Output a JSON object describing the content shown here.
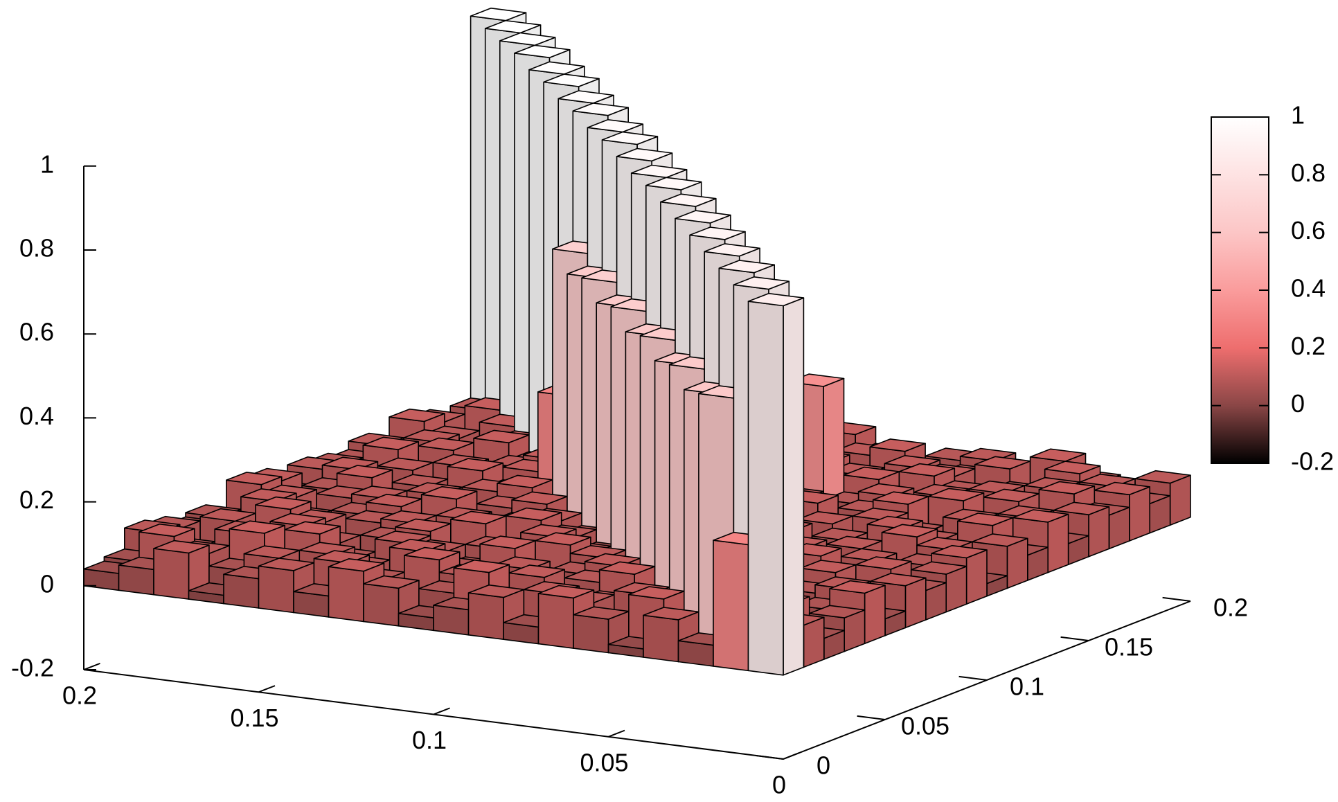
{
  "chart_data": {
    "type": "bar3d",
    "x": [
      0.005,
      0.015,
      0.025,
      0.035,
      0.045,
      0.055,
      0.065,
      0.075,
      0.085,
      0.095,
      0.105,
      0.115,
      0.125,
      0.135,
      0.145,
      0.155,
      0.165,
      0.175,
      0.185,
      0.195
    ],
    "y": [
      0.005,
      0.015,
      0.025,
      0.035,
      0.045,
      0.055,
      0.065,
      0.075,
      0.085,
      0.095,
      0.105,
      0.115,
      0.125,
      0.135,
      0.145,
      0.155,
      0.165,
      0.175,
      0.185,
      0.195
    ],
    "z": [
      [
        0.88,
        0.3,
        0.05,
        0.1,
        0.02,
        0.08,
        0.12,
        0.04,
        0.1,
        0.06,
        0.03,
        0.09,
        0.12,
        0.05,
        0.1,
        0.07,
        0.02,
        0.11,
        0.06,
        0.04
      ],
      [
        0.1,
        0.89,
        0.62,
        0.06,
        0.12,
        0.03,
        0.09,
        0.1,
        0.05,
        0.13,
        0.07,
        0.02,
        0.08,
        0.11,
        0.04,
        0.1,
        0.06,
        0.09,
        0.12,
        0.05
      ],
      [
        0.05,
        0.12,
        0.9,
        0.6,
        0.04,
        0.1,
        0.07,
        0.02,
        0.11,
        0.06,
        0.09,
        0.12,
        0.03,
        0.08,
        0.1,
        0.05,
        0.13,
        0.04,
        0.07,
        0.1
      ],
      [
        0.08,
        0.03,
        0.1,
        0.91,
        0.63,
        0.06,
        0.12,
        0.09,
        0.04,
        0.1,
        0.05,
        0.08,
        0.11,
        0.02,
        0.07,
        0.12,
        0.06,
        0.1,
        0.03,
        0.09
      ],
      [
        0.12,
        0.07,
        0.04,
        0.1,
        0.92,
        0.61,
        0.05,
        0.11,
        0.08,
        0.03,
        0.12,
        0.06,
        0.09,
        0.1,
        0.04,
        0.08,
        0.11,
        0.05,
        0.1,
        0.07
      ],
      [
        0.04,
        0.1,
        0.08,
        0.05,
        0.12,
        0.93,
        0.64,
        0.07,
        0.1,
        0.12,
        0.02,
        0.09,
        0.05,
        0.11,
        0.08,
        0.03,
        0.1,
        0.12,
        0.06,
        0.08
      ],
      [
        0.1,
        0.06,
        0.11,
        0.09,
        0.03,
        0.1,
        0.94,
        0.62,
        0.04,
        0.08,
        0.11,
        0.05,
        0.12,
        0.07,
        0.1,
        0.09,
        0.04,
        0.08,
        0.11,
        0.03
      ],
      [
        0.07,
        0.11,
        0.02,
        0.12,
        0.08,
        0.05,
        0.1,
        0.95,
        0.65,
        0.06,
        0.09,
        0.12,
        0.04,
        0.1,
        0.06,
        0.11,
        0.08,
        0.02,
        0.1,
        0.12
      ],
      [
        0.09,
        0.05,
        0.1,
        0.06,
        0.11,
        0.08,
        0.04,
        0.12,
        0.95,
        0.63,
        0.07,
        0.1,
        0.08,
        0.03,
        0.12,
        0.05,
        0.1,
        0.09,
        0.04,
        0.11
      ],
      [
        0.11,
        0.08,
        0.06,
        0.1,
        0.04,
        0.12,
        0.09,
        0.05,
        0.1,
        0.96,
        0.66,
        0.04,
        0.11,
        0.09,
        0.05,
        0.1,
        0.07,
        0.12,
        0.08,
        0.06
      ],
      [
        0.03,
        0.1,
        0.12,
        0.07,
        0.09,
        0.05,
        0.11,
        0.08,
        0.06,
        0.1,
        0.97,
        0.64,
        0.07,
        0.12,
        0.1,
        0.04,
        0.09,
        0.06,
        0.11,
        0.1
      ],
      [
        0.1,
        0.04,
        0.09,
        0.11,
        0.06,
        0.1,
        0.03,
        0.12,
        0.09,
        0.05,
        0.1,
        0.97,
        0.67,
        0.06,
        0.08,
        0.12,
        0.05,
        0.1,
        0.07,
        0.09
      ],
      [
        0.06,
        0.12,
        0.05,
        0.08,
        0.1,
        0.07,
        0.12,
        0.04,
        0.11,
        0.08,
        0.06,
        0.1,
        0.98,
        0.3,
        0.11,
        0.07,
        0.1,
        0.04,
        0.12,
        0.08
      ],
      [
        0.12,
        0.08,
        0.1,
        0.04,
        0.12,
        0.09,
        0.06,
        0.1,
        0.05,
        0.12,
        0.09,
        0.07,
        0.1,
        0.98,
        0.12,
        0.09,
        0.06,
        0.11,
        0.05,
        0.1
      ],
      [
        0.05,
        0.1,
        0.07,
        0.12,
        0.06,
        0.11,
        0.08,
        0.35,
        0.1,
        0.06,
        0.11,
        0.12,
        0.05,
        0.1,
        0.99,
        0.08,
        0.12,
        0.07,
        0.1,
        0.06
      ],
      [
        0.1,
        0.07,
        0.11,
        0.06,
        0.1,
        0.04,
        0.12,
        0.09,
        0.07,
        0.1,
        0.05,
        0.08,
        0.11,
        0.07,
        0.1,
        0.99,
        0.1,
        0.05,
        0.09,
        0.12
      ],
      [
        0.08,
        0.12,
        0.04,
        0.1,
        0.09,
        0.12,
        0.05,
        0.1,
        0.12,
        0.04,
        0.1,
        0.09,
        0.06,
        0.12,
        0.08,
        0.05,
        1.0,
        0.11,
        0.06,
        0.1
      ],
      [
        0.11,
        0.06,
        0.1,
        0.08,
        0.05,
        0.1,
        0.11,
        0.07,
        0.04,
        0.11,
        0.08,
        0.12,
        0.1,
        0.05,
        0.09,
        0.11,
        0.1,
        1.0,
        0.12,
        0.07
      ],
      [
        0.07,
        0.1,
        0.12,
        0.05,
        0.11,
        0.08,
        0.06,
        0.12,
        0.1,
        0.07,
        0.12,
        0.04,
        0.09,
        0.1,
        0.06,
        0.12,
        0.08,
        0.1,
        1.0,
        0.09
      ],
      [
        0.1,
        0.05,
        0.08,
        0.12,
        0.07,
        0.1,
        0.09,
        0.04,
        0.08,
        0.12,
        0.06,
        0.1,
        0.12,
        0.08,
        0.11,
        0.06,
        0.1,
        0.07,
        0.09,
        1.0
      ]
    ],
    "xlim": [
      0,
      0.2
    ],
    "xticks": [
      0.2,
      0.15,
      0.1,
      0.05,
      0
    ],
    "ylim": [
      0,
      0.2
    ],
    "yticks": [
      0,
      0.05,
      0.1,
      0.15,
      0.2
    ],
    "zlim": [
      -0.2,
      1
    ],
    "zticks": [
      1,
      0.8,
      0.6,
      0.4,
      0.2,
      0,
      -0.2
    ],
    "cblim": [
      -0.2,
      1
    ],
    "cbticks": [
      1,
      0.8,
      0.6,
      0.4,
      0.2,
      0,
      -0.2
    ],
    "palette": [
      {
        "value": -0.2,
        "color": "#000000"
      },
      {
        "value": 0,
        "color": "#8a4646"
      },
      {
        "value": 0.2,
        "color": "#ee6e6e"
      },
      {
        "value": 0.4,
        "color": "#fa9c9c"
      },
      {
        "value": 0.6,
        "color": "#fcc6c6"
      },
      {
        "value": 1,
        "color": "#ffffff"
      }
    ]
  }
}
